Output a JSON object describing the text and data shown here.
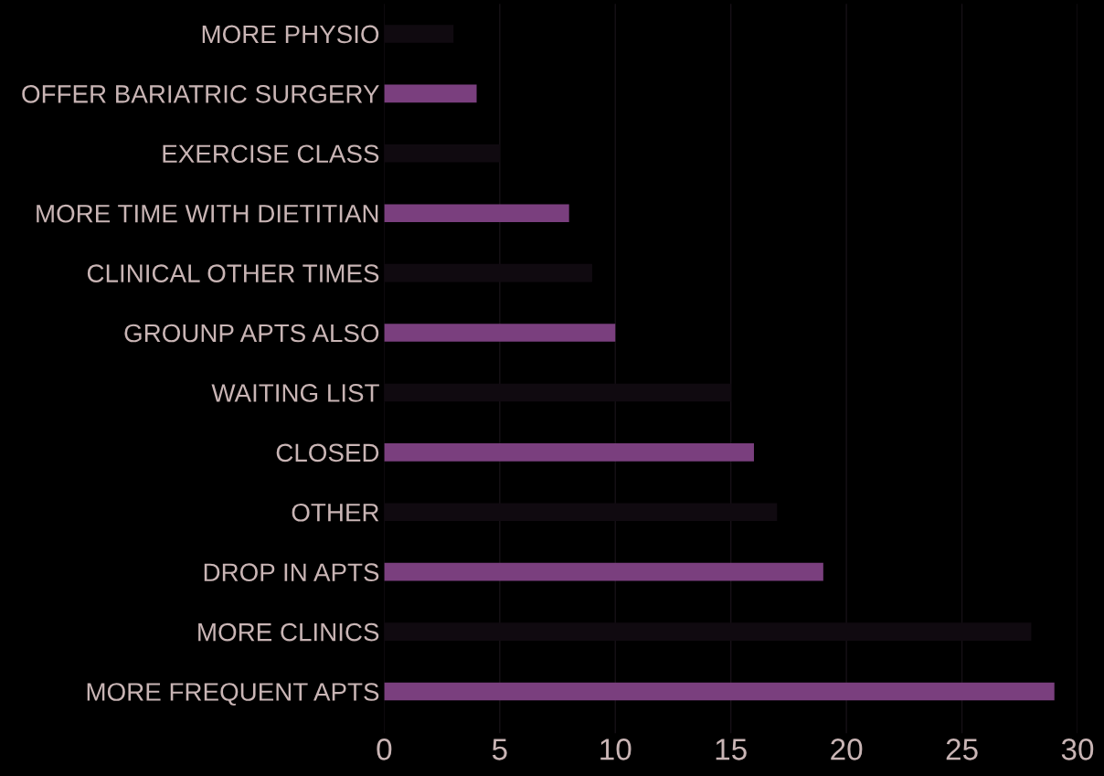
{
  "chart_data": {
    "type": "bar",
    "orientation": "horizontal",
    "categories": [
      "MORE PHYSIO",
      "OFFER BARIATRIC SURGERY",
      "EXERCISE CLASS",
      "MORE TIME WITH DIETITIAN",
      "CLINICAL OTHER TIMES",
      "GROUNP APTS ALSO",
      "WAITING LIST",
      "CLOSED",
      "OTHER",
      "DROP IN APTS",
      "MORE CLINICS",
      "MORE FREQUENT APTS"
    ],
    "values": [
      3,
      4,
      5,
      8,
      9,
      10,
      15,
      16,
      17,
      19,
      28,
      29
    ],
    "colors": [
      "#100a10",
      "#7a3f7e",
      "#100a10",
      "#7a3f7e",
      "#100a10",
      "#7a3f7e",
      "#100a10",
      "#7a3f7e",
      "#100a10",
      "#7a3f7e",
      "#100a10",
      "#7a3f7e"
    ],
    "xlim": [
      0,
      30
    ],
    "xticks": [
      0,
      5,
      10,
      15,
      20,
      25,
      30
    ],
    "grid": "x"
  }
}
